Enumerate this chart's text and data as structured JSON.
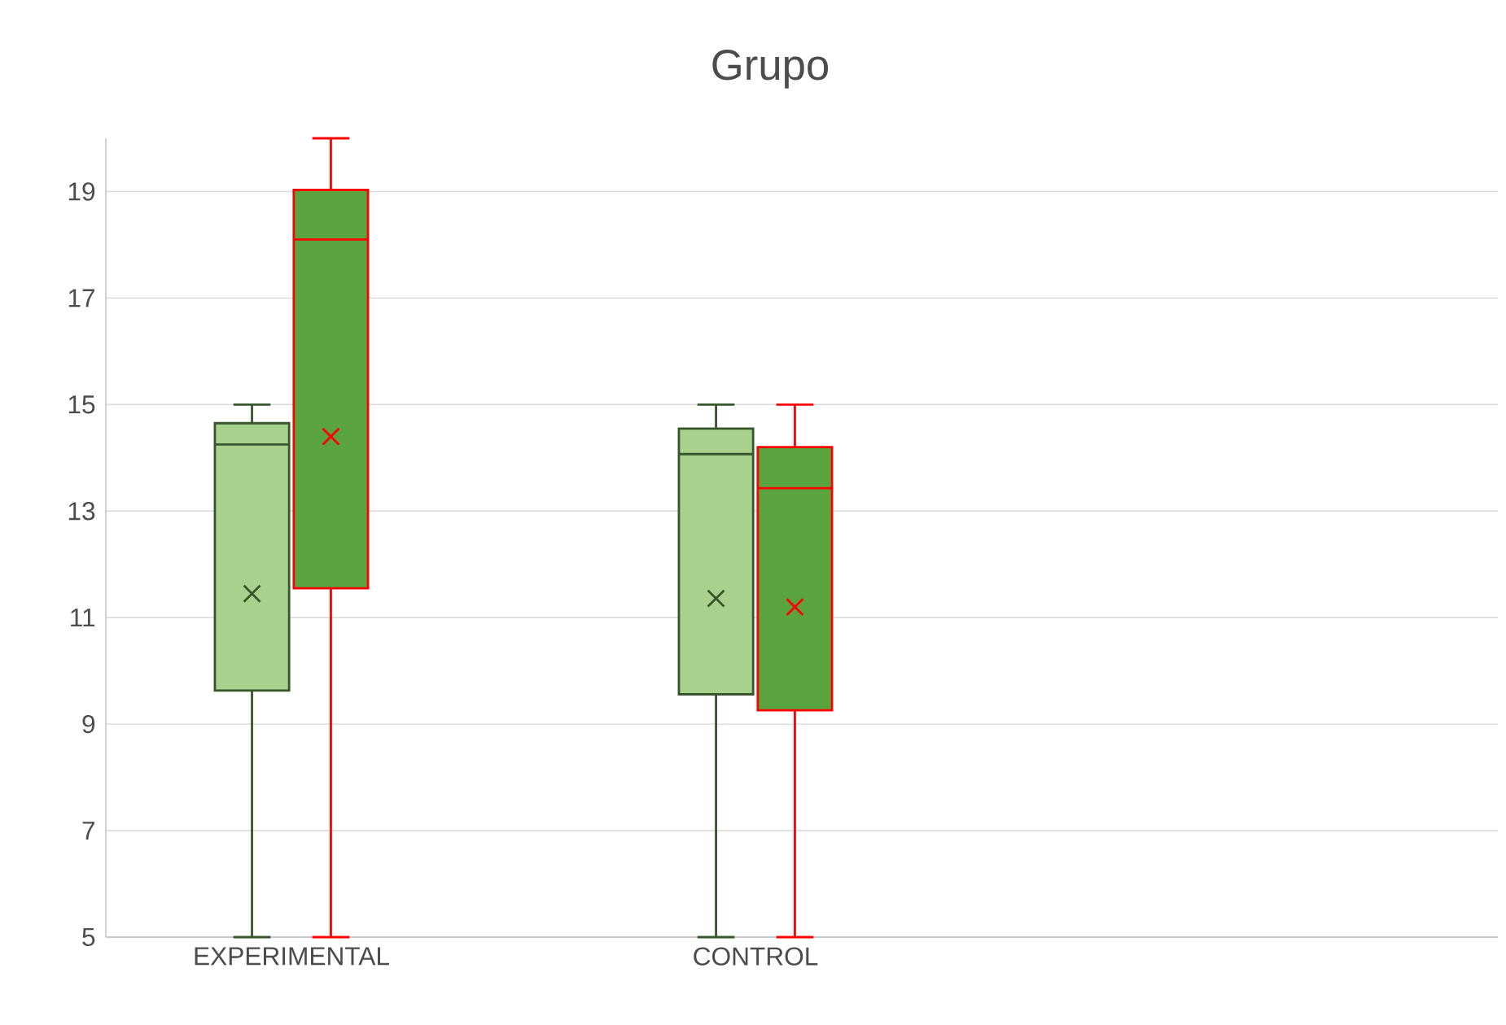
{
  "chart_data": {
    "type": "box",
    "title": "Grupo",
    "categories": [
      "EXPERIMENTAL",
      "CONTROL"
    ],
    "series": [
      {
        "color": "#a9d18e",
        "boxes": [
          {
            "low": 5,
            "q1": 9.63,
            "median": 14.25,
            "q3": 14.65,
            "high": 15,
            "mean": 11.45
          },
          {
            "low": 5,
            "q1": 9.56,
            "median": 14.07,
            "q3": 14.55,
            "high": 15,
            "mean": 11.36
          }
        ]
      },
      {
        "color": "#5aa440",
        "boxes": [
          {
            "low": 5,
            "q1": 11.55,
            "median": 18.1,
            "q3": 19.03,
            "high": 20,
            "mean": 14.4
          },
          {
            "low": 5,
            "q1": 9.26,
            "median": 13.43,
            "q3": 14.2,
            "high": 15,
            "mean": 11.2
          }
        ]
      }
    ],
    "ylim": [
      5,
      20
    ],
    "yticks": [
      5,
      7,
      9,
      11,
      13,
      15,
      17,
      19
    ],
    "grid": "y",
    "marker": "cross"
  }
}
